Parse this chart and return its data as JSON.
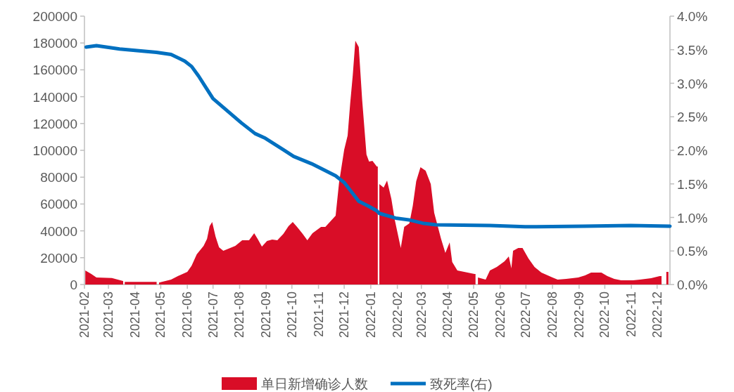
{
  "chart_data": {
    "type": "area",
    "legend": "bottom",
    "marker": "none",
    "xlim": [
      "2021-02-01",
      "2022-12-16"
    ],
    "xticks": [
      "2021-02",
      "2021-03",
      "2021-04",
      "2021-05",
      "2021-06",
      "2021-07",
      "2021-08",
      "2021-09",
      "2021-10",
      "2021-11",
      "2021-12",
      "2022-01",
      "2022-02",
      "2022-03",
      "2022-04",
      "2022-05",
      "2022-06",
      "2022-07",
      "2022-08",
      "2022-09",
      "2022-10",
      "2022-11",
      "2022-12"
    ],
    "ylim": [
      0,
      200000
    ],
    "yticks": [
      0,
      20000,
      40000,
      60000,
      80000,
      100000,
      120000,
      140000,
      160000,
      180000,
      200000
    ],
    "y2lim": [
      0,
      4
    ],
    "y2ticks": [
      {
        "value": 0,
        "label": "0.0%"
      },
      {
        "value": 0.5,
        "label": "0.5%"
      },
      {
        "value": 1,
        "label": "1.0%"
      },
      {
        "value": 1.5,
        "label": "1.5%"
      },
      {
        "value": 2,
        "label": "2.0%"
      },
      {
        "value": 2.5,
        "label": "2.5%"
      },
      {
        "value": 3,
        "label": "3.0%"
      },
      {
        "value": 3.5,
        "label": "3.5%"
      },
      {
        "value": 4,
        "label": "4.0%"
      }
    ],
    "series": [
      {
        "name": "单日新增确诊人数",
        "type": "area",
        "color": "#d90d27",
        "x": [
          "2021-02-02",
          "2021-02-09",
          "2021-02-15",
          "2021-03-05",
          "2021-03-18",
          "2021-03-19",
          "2021-03-20",
          "2021-04-26",
          "2021-04-27",
          "2021-04-29",
          "2021-05-13",
          "2021-05-21",
          "2021-06-01",
          "2021-06-06",
          "2021-06-12",
          "2021-06-20",
          "2021-06-24",
          "2021-06-27",
          "2021-06-30",
          "2021-07-04",
          "2021-07-08",
          "2021-07-13",
          "2021-07-21",
          "2021-07-27",
          "2021-08-04",
          "2021-08-12",
          "2021-08-18",
          "2021-08-22",
          "2021-08-27",
          "2021-09-02",
          "2021-09-08",
          "2021-09-14",
          "2021-09-21",
          "2021-09-27",
          "2021-10-02",
          "2021-10-07",
          "2021-10-13",
          "2021-10-19",
          "2021-10-25",
          "2021-11-04",
          "2021-11-09",
          "2021-11-15",
          "2021-11-21",
          "2021-11-25",
          "2021-12-01",
          "2021-12-05",
          "2021-12-08",
          "2021-12-11",
          "2021-12-14",
          "2021-12-18",
          "2021-12-22",
          "2021-12-27",
          "2021-12-30",
          "2022-01-03",
          "2022-01-08",
          "2022-01-10",
          "2022-01-11",
          "2022-01-16",
          "2022-01-20",
          "2022-01-25",
          "2022-01-29",
          "2022-02-05",
          "2022-02-09",
          "2022-02-15",
          "2022-02-19",
          "2022-02-23",
          "2022-02-28",
          "2022-03-06",
          "2022-03-12",
          "2022-03-16",
          "2022-03-24",
          "2022-03-29",
          "2022-04-03",
          "2022-04-06",
          "2022-04-12",
          "2022-04-20",
          "2022-05-02",
          "2022-05-04",
          "2022-05-06",
          "2022-05-15",
          "2022-05-20",
          "2022-05-28",
          "2022-06-06",
          "2022-06-11",
          "2022-06-14",
          "2022-06-16",
          "2022-06-22",
          "2022-06-27",
          "2022-07-04",
          "2022-07-11",
          "2022-07-19",
          "2022-08-01",
          "2022-08-07",
          "2022-08-17",
          "2022-08-31",
          "2022-09-08",
          "2022-09-15",
          "2022-09-27",
          "2022-10-04",
          "2022-10-12",
          "2022-10-20",
          "2022-11-03",
          "2022-11-11",
          "2022-11-24",
          "2022-12-04",
          "2022-12-07",
          "2022-12-13"
        ],
        "values": [
          10500,
          7900,
          5200,
          4900,
          2600,
          null,
          2000,
          2000,
          null,
          1500,
          3600,
          6300,
          9400,
          14000,
          22500,
          28800,
          34000,
          43500,
          46600,
          35600,
          27700,
          25100,
          27200,
          28800,
          33000,
          33000,
          38200,
          34000,
          28300,
          32500,
          33500,
          33000,
          37700,
          43500,
          46600,
          42900,
          38200,
          33000,
          38200,
          42900,
          42900,
          47100,
          51300,
          75900,
          100500,
          111000,
          135100,
          156000,
          181700,
          177000,
          137200,
          96900,
          91600,
          92200,
          88000,
          null,
          74900,
          72300,
          77500,
          63900,
          48200,
          27200,
          42900,
          45600,
          58600,
          77000,
          87400,
          84800,
          74900,
          53400,
          34000,
          23600,
          31400,
          16800,
          10500,
          9400,
          7900,
          null,
          5200,
          3600,
          10500,
          13100,
          17300,
          20900,
          12000,
          25100,
          27200,
          27200,
          19400,
          13100,
          8900,
          5200,
          3600,
          4200,
          5200,
          6800,
          8900,
          8900,
          6300,
          4200,
          3100,
          3100,
          3600,
          4700,
          6300,
          null,
          9400
        ]
      },
      {
        "name": "致死率(右)",
        "type": "line",
        "axis": "y2",
        "color": "#0070c0",
        "x": [
          "2021-02-03",
          "2021-02-15",
          "2021-03-14",
          "2021-04-26",
          "2021-05-13",
          "2021-05-29",
          "2021-06-06",
          "2021-06-14",
          "2021-06-24",
          "2021-07-01",
          "2021-07-12",
          "2021-08-03",
          "2021-08-19",
          "2021-08-31",
          "2021-09-21",
          "2021-10-03",
          "2021-10-24",
          "2021-11-21",
          "2021-12-01",
          "2021-12-18",
          "2021-12-29",
          "2022-01-08",
          "2022-01-11",
          "2022-01-30",
          "2022-02-16",
          "2022-03-04",
          "2022-03-18",
          "2022-05-20",
          "2022-06-30",
          "2022-09-06",
          "2022-10-31",
          "2022-12-16"
        ],
        "values": [
          3.54,
          3.56,
          3.51,
          3.46,
          3.43,
          3.33,
          3.25,
          3.11,
          2.91,
          2.77,
          2.65,
          2.41,
          2.25,
          2.18,
          2.01,
          1.91,
          1.8,
          1.62,
          1.52,
          1.24,
          1.17,
          1.1,
          1.06,
          0.99,
          0.96,
          0.91,
          0.89,
          0.88,
          0.86,
          0.87,
          0.88,
          0.87
        ]
      }
    ]
  }
}
